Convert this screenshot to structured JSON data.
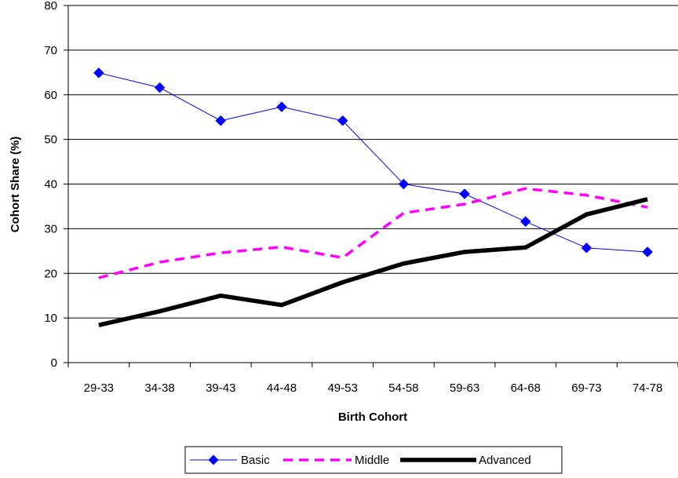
{
  "chart_data": {
    "type": "line",
    "xlabel": "Birth Cohort",
    "ylabel": "Cohort Share (%)",
    "categories": [
      "29-33",
      "34-38",
      "39-43",
      "44-48",
      "49-53",
      "54-58",
      "59-63",
      "64-68",
      "69-73",
      "74-78"
    ],
    "ylim": [
      0,
      80
    ],
    "yticks": [
      "0",
      "10",
      "20",
      "30",
      "40",
      "50",
      "60",
      "70",
      "80"
    ],
    "grid": "horizontal",
    "legend_position": "bottom",
    "series": [
      {
        "name": "Basic",
        "values": [
          64.9,
          61.6,
          54.2,
          57.3,
          54.2,
          40.0,
          37.8,
          31.6,
          25.7,
          24.8
        ],
        "color": "#0000ff",
        "style": "line-diamond"
      },
      {
        "name": "Middle",
        "values": [
          19.0,
          22.5,
          24.6,
          25.9,
          23.5,
          33.5,
          35.5,
          39.0,
          37.5,
          34.8
        ],
        "color": "#ff00ff",
        "style": "dashed"
      },
      {
        "name": "Advanced",
        "values": [
          8.4,
          11.5,
          15.0,
          12.9,
          18.0,
          22.2,
          24.8,
          25.8,
          33.2,
          36.6
        ],
        "color": "#000000",
        "style": "thick"
      }
    ]
  }
}
